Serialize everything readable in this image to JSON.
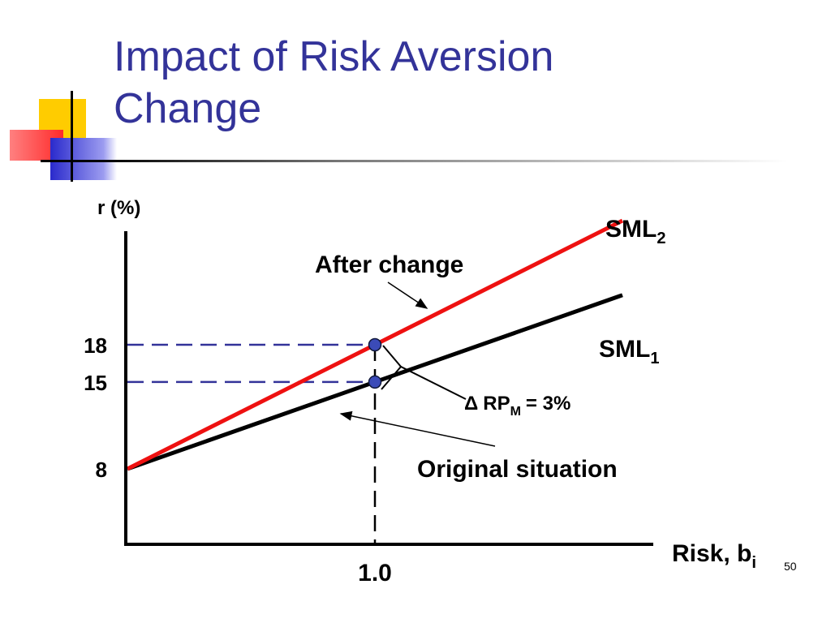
{
  "slide": {
    "title_line1": "Impact of Risk Aversion",
    "title_line2": "Change",
    "slide_number": "50",
    "colors": {
      "title": "#333399",
      "accent_yellow": "#FFCC00",
      "accent_red": "#FF3333",
      "accent_blue": "#3333CC",
      "guide_line": "#333399"
    }
  },
  "chart_data": {
    "type": "line",
    "ylabel": "r (%)",
    "xlabel": "Risk, b",
    "xlabel_subscript": "i",
    "x_ticks": [
      {
        "value": 1.0,
        "label": "1.0"
      }
    ],
    "y_ticks": [
      {
        "value": 8,
        "label": "8"
      },
      {
        "value": 15,
        "label": "15"
      },
      {
        "value": 18,
        "label": "18"
      }
    ],
    "grid": false,
    "series": [
      {
        "name": "SML",
        "subscript": "1",
        "color": "#000000",
        "x": [
          0,
          2.0
        ],
        "y": [
          8,
          22
        ]
      },
      {
        "name": "SML",
        "subscript": "2",
        "color": "#EE1111",
        "x": [
          0,
          2.0
        ],
        "y": [
          8,
          28
        ]
      }
    ],
    "highlight_points": [
      {
        "x": 1.0,
        "y": 18
      },
      {
        "x": 1.0,
        "y": 15
      }
    ],
    "annotations": {
      "after_change": "After change",
      "original_situation": "Original situation",
      "delta_symbol": "Δ",
      "delta_label": "RP",
      "delta_subscript": "M",
      "delta_value": "= 3%"
    }
  }
}
